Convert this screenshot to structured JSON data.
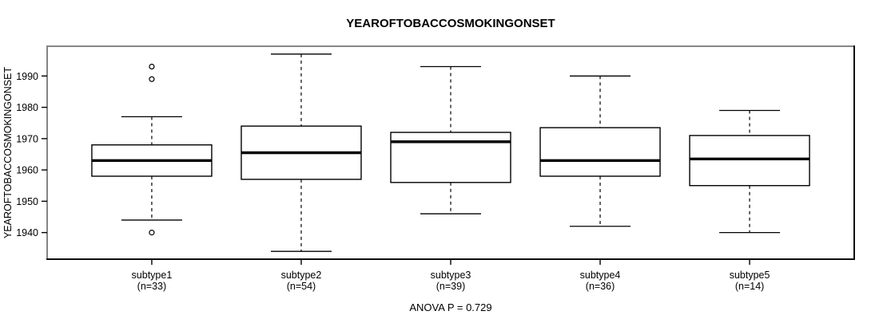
{
  "chart_data": {
    "type": "boxplot",
    "title": "YEAROFTOBACCOSMOKINGONSET",
    "ylabel": "YEAROFTOBACCOSMOKINGONSET",
    "xlabel": "",
    "annotation": "ANOVA P = 0.729",
    "ylim": [
      1931.5,
      1999.5
    ],
    "yticks": [
      1940,
      1950,
      1960,
      1970,
      1980,
      1990
    ],
    "grid": false,
    "legend": "none",
    "groups": [
      {
        "label": "subtype1",
        "sublabel": "(n=33)",
        "n": 33,
        "whisker_low": 1944,
        "q1": 1958,
        "median": 1963,
        "q3": 1968,
        "whisker_high": 1977,
        "outliers": [
          1993,
          1989,
          1940
        ]
      },
      {
        "label": "subtype2",
        "sublabel": "(n=54)",
        "n": 54,
        "whisker_low": 1934,
        "q1": 1957,
        "median": 1965.5,
        "q3": 1974,
        "whisker_high": 1997,
        "outliers": []
      },
      {
        "label": "subtype3",
        "sublabel": "(n=39)",
        "n": 39,
        "whisker_low": 1946,
        "q1": 1956,
        "median": 1969,
        "q3": 1972,
        "whisker_high": 1993,
        "outliers": []
      },
      {
        "label": "subtype4",
        "sublabel": "(n=36)",
        "n": 36,
        "whisker_low": 1942,
        "q1": 1958,
        "median": 1963,
        "q3": 1973.5,
        "whisker_high": 1990,
        "outliers": []
      },
      {
        "label": "subtype5",
        "sublabel": "(n=14)",
        "n": 14,
        "whisker_low": 1940,
        "q1": 1955,
        "median": 1963.5,
        "q3": 1971,
        "whisker_high": 1979,
        "outliers": []
      }
    ],
    "colors": {
      "data_stroke": "#000000",
      "box_fill": "#ffffff",
      "frame_light": "#858585",
      "frame_dark": "#0d0d0d",
      "background": "#ffffff"
    }
  }
}
